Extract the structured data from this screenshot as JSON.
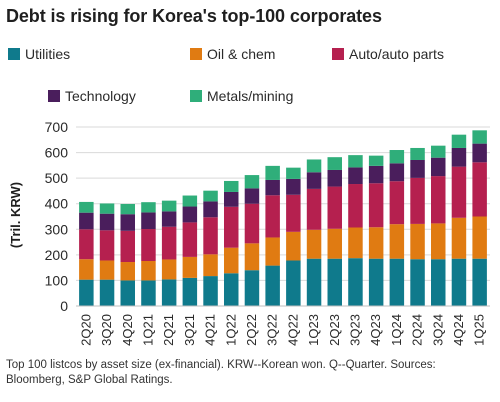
{
  "title": "Debt is rising for Korea's top-100 corporates",
  "footnote": "Top 100 listcos by asset size (ex-financial). KRW--Korean won. Q--Quarter. Sources: Bloomberg, S&P Global Ratings.",
  "chart_data": {
    "type": "bar",
    "stacked": true,
    "ylabel": "(Tril. KRW)",
    "xlabel": "",
    "ylim": [
      0,
      700
    ],
    "yticks": [
      0,
      100,
      200,
      300,
      400,
      500,
      600,
      700
    ],
    "grid": true,
    "legend_position": "top",
    "categories": [
      "2Q20",
      "3Q20",
      "4Q20",
      "1Q21",
      "2Q21",
      "3Q21",
      "4Q21",
      "1Q22",
      "2Q22",
      "3Q22",
      "4Q22",
      "1Q23",
      "2Q23",
      "3Q23",
      "4Q23",
      "1Q24",
      "2Q24",
      "3Q24",
      "4Q24",
      "1Q25"
    ],
    "tick_labels_shown": [
      "2Q20",
      "3Q20",
      "4Q20",
      "1Q21",
      "2Q21",
      "3Q21",
      "4Q21",
      "1Q22",
      "2Q22",
      "3Q22",
      "4Q22",
      "1Q23",
      "2Q23",
      "3Q23",
      "4Q23",
      "1Q24",
      "2Q24",
      "3Q24",
      "4Q24",
      "1Q25"
    ],
    "series": [
      {
        "name": "Utilities",
        "color": "#0f7a8c",
        "values": [
          103,
          103,
          100,
          100,
          104,
          110,
          117,
          128,
          140,
          158,
          178,
          185,
          185,
          187,
          185,
          185,
          183,
          183,
          185,
          185
        ]
      },
      {
        "name": "Oil & chem",
        "color": "#e07b12",
        "values": [
          80,
          75,
          72,
          76,
          78,
          82,
          85,
          100,
          105,
          110,
          112,
          113,
          117,
          120,
          123,
          135,
          138,
          140,
          160,
          165
        ]
      },
      {
        "name": "Auto/auto parts",
        "color": "#b5204f",
        "values": [
          117,
          118,
          122,
          125,
          128,
          135,
          145,
          160,
          155,
          165,
          145,
          160,
          165,
          170,
          172,
          168,
          180,
          185,
          200,
          212
        ]
      },
      {
        "name": "Technology",
        "color": "#4a1e5c",
        "values": [
          65,
          65,
          65,
          65,
          60,
          62,
          62,
          58,
          60,
          60,
          62,
          65,
          65,
          65,
          68,
          70,
          70,
          72,
          73,
          73
        ]
      },
      {
        "name": "Metals/mining",
        "color": "#2fae7a",
        "values": [
          42,
          40,
          40,
          40,
          42,
          43,
          42,
          43,
          52,
          55,
          44,
          50,
          50,
          48,
          40,
          52,
          47,
          47,
          52,
          52
        ]
      }
    ]
  }
}
